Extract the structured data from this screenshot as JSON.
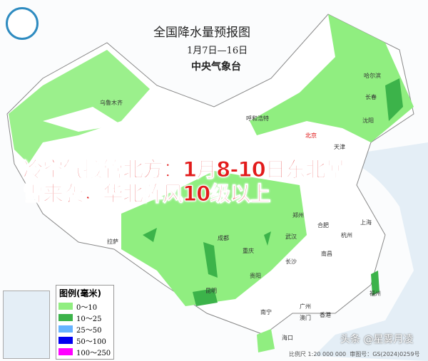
{
  "map": {
    "title": "全国降水量预报图",
    "date_range": "1月7日—16日",
    "issuer": "中央气象台"
  },
  "headline": {
    "line1": "冷空气接管北方：1月8-10日东北暴",
    "line2": "雪来袭，华北阵风10级以上"
  },
  "cities": [
    "乌鲁木齐",
    "哈尔滨",
    "长春",
    "沈阳",
    "呼和浩特",
    "北京",
    "天津",
    "拉萨",
    "成都",
    "重庆",
    "郑州",
    "武汉",
    "合肥",
    "上海",
    "杭州",
    "南昌",
    "长沙",
    "贵阳",
    "昆明",
    "福州",
    "南宁",
    "广州",
    "澳门",
    "香港",
    "海口"
  ],
  "legend": {
    "title": "图例(毫米)",
    "items": [
      {
        "label": "0～10",
        "color": "#90ee80"
      },
      {
        "label": "10～25",
        "color": "#3cb34a"
      },
      {
        "label": "25～50",
        "color": "#66b3ff"
      },
      {
        "label": "50～100",
        "color": "#0000f0"
      },
      {
        "label": "100～250",
        "color": "#ff00ff"
      }
    ]
  },
  "footer": {
    "scale": "比例尺 1:20 000 000",
    "approval": "审图号：GS(2024)0259号"
  },
  "watermark": "头条 @星雾月凌",
  "colors": {
    "headline": "#e21b1b",
    "land": "#ffffff",
    "sea": "#e4eef6",
    "light_rain": "#90ee80",
    "moderate_rain": "#3cb34a"
  }
}
